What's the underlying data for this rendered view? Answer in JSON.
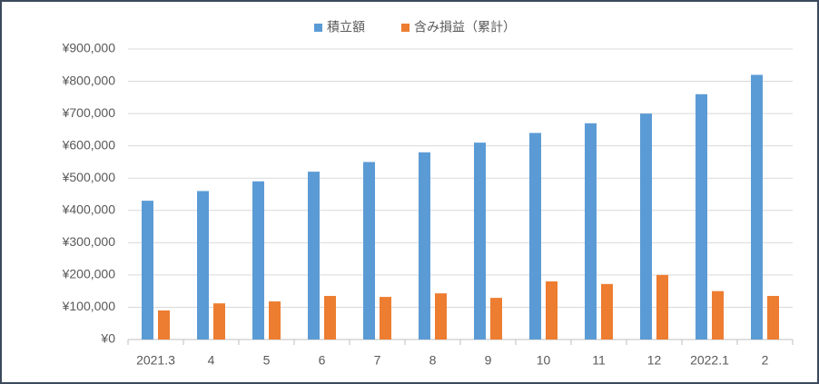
{
  "chart_data": {
    "type": "bar",
    "categories": [
      "2021.3",
      "4",
      "5",
      "6",
      "7",
      "8",
      "9",
      "10",
      "11",
      "12",
      "2022.1",
      "2"
    ],
    "series": [
      {
        "name": "積立額",
        "color": "#5b9bd5",
        "values": [
          430000,
          460000,
          490000,
          520000,
          550000,
          580000,
          610000,
          640000,
          670000,
          700000,
          760000,
          820000
        ]
      },
      {
        "name": "含み損益（累計）",
        "color": "#ed7d31",
        "values": [
          90000,
          112000,
          118000,
          135000,
          132000,
          143000,
          129000,
          180000,
          172000,
          200000,
          150000,
          135000
        ]
      }
    ],
    "ylim": [
      0,
      900000
    ],
    "yticks": [
      {
        "value": 0,
        "label": "¥0"
      },
      {
        "value": 100000,
        "label": "¥100,000"
      },
      {
        "value": 200000,
        "label": "¥200,000"
      },
      {
        "value": 300000,
        "label": "¥300,000"
      },
      {
        "value": 400000,
        "label": "¥400,000"
      },
      {
        "value": 500000,
        "label": "¥500,000"
      },
      {
        "value": 600000,
        "label": "¥600,000"
      },
      {
        "value": 700000,
        "label": "¥700,000"
      },
      {
        "value": 800000,
        "label": "¥800,000"
      },
      {
        "value": 900000,
        "label": "¥900,000"
      }
    ],
    "grid": true,
    "legend": "top"
  }
}
